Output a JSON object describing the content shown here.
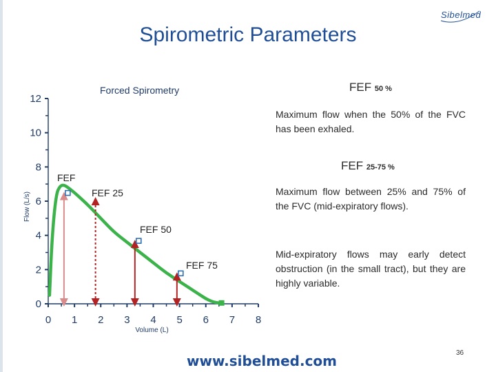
{
  "slide": {
    "title": "Spirometric Parameters",
    "logo": "Sibelmed",
    "footer_url": "www.sibelmed.com",
    "page_number": "36"
  },
  "right_panel": {
    "fef50_head": "FEF",
    "fef50_sub": "50 %",
    "fef50_text": "Maximum flow when the 50% of the FVC has been exhaled.",
    "fef2575_head": "FEF",
    "fef2575_sub": "25-75 %",
    "fef2575_text": "Maximum flow between 25% and 75% of the FVC (mid-expiratory flows).",
    "note": "Mid-expiratory flows may early detect obstruction (in the small tract), but they are highly variable."
  },
  "chart_data": {
    "type": "line",
    "title": "Forced Spirometry",
    "xlabel": "Volume (L)",
    "ylabel": "Flow (L/s)",
    "xlim": [
      0,
      8
    ],
    "ylim": [
      0,
      12
    ],
    "x_ticks": [
      "0",
      "1",
      "2",
      "3",
      "4",
      "5",
      "6",
      "7",
      "8"
    ],
    "y_ticks": [
      "0",
      "2",
      "4",
      "6",
      "8",
      "10",
      "12"
    ],
    "series": [
      {
        "color": "#3cb34a",
        "x": [
          0.05,
          0.15,
          0.3,
          0.45,
          0.6,
          0.75,
          1.0,
          1.5,
          2.0,
          2.5,
          3.0,
          3.5,
          4.0,
          4.5,
          5.0,
          5.5,
          5.8,
          6.0,
          6.2,
          6.4,
          6.6
        ],
        "y": [
          0.5,
          4.0,
          6.4,
          6.9,
          6.95,
          6.8,
          6.5,
          5.8,
          5.0,
          4.2,
          3.6,
          3.0,
          2.4,
          1.8,
          1.3,
          0.8,
          0.5,
          0.3,
          0.15,
          0.06,
          0.05
        ]
      }
    ],
    "markers": [
      {
        "label": "FEF",
        "x": 0.6,
        "y": 6.5,
        "arrow_color": "#d98a8a"
      },
      {
        "label": "FEF 25",
        "x": 1.8,
        "y": 6.2,
        "arrow_color": "#b22222"
      },
      {
        "label": "FEF 50",
        "x": 3.3,
        "y": 3.7,
        "arrow_color": "#b22222"
      },
      {
        "label": "FEF 75",
        "x": 4.9,
        "y": 1.8,
        "arrow_color": "#b22222"
      }
    ],
    "grid": false
  }
}
